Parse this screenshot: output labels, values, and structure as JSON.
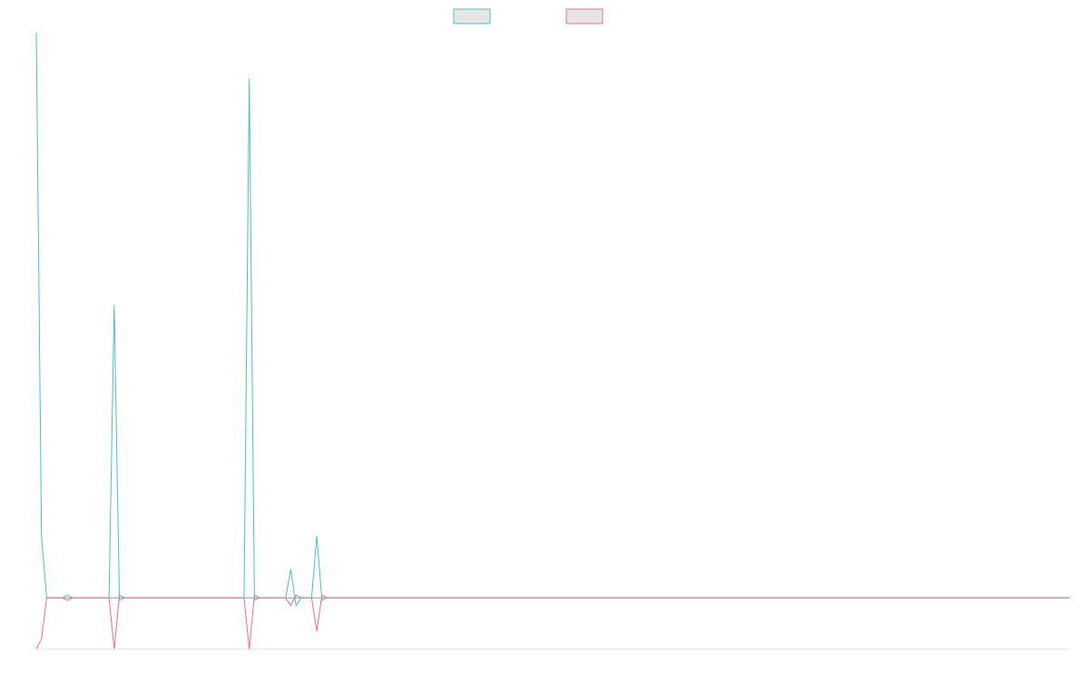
{
  "chart_data": {
    "type": "line",
    "title": "",
    "xlabel": "",
    "ylabel": "",
    "legend_placement": "top-center",
    "grid": false,
    "x_count": 200,
    "ylim": [
      -1,
      11
    ],
    "baseline": 0,
    "series": [
      {
        "color": "#4bc0c0",
        "legend_fill": "#e5e5e5",
        "values": [
          11,
          1.2,
          0,
          0,
          0,
          0,
          0.05,
          0,
          0,
          0,
          0,
          0,
          0,
          0,
          0,
          5.7,
          -0.05,
          0,
          0,
          0,
          0,
          0,
          0,
          0,
          0,
          0,
          0,
          0,
          0,
          0,
          0,
          0,
          0,
          0,
          0,
          0,
          0,
          0,
          0,
          0,
          0,
          10.1,
          -0.05,
          0,
          0,
          0,
          0,
          0,
          0,
          0.55,
          -0.15,
          0,
          0,
          0,
          1.2,
          -0.05
        ],
        "values_rest": 0
      },
      {
        "color": "#f06b8c",
        "legend_fill": "#e5e5e5",
        "values": [
          -1,
          -0.8,
          0,
          0,
          0,
          0,
          -0.05,
          0,
          0,
          0,
          0,
          0,
          0,
          0,
          0,
          -1,
          0.05,
          0,
          0,
          0,
          0,
          0,
          0,
          0,
          0,
          0,
          0,
          0,
          0,
          0,
          0,
          0,
          0,
          0,
          0,
          0,
          0,
          0,
          0,
          0,
          0,
          -1,
          0.05,
          0,
          0,
          0,
          0,
          0,
          0,
          -0.15,
          0.05,
          0,
          0,
          0,
          -0.65,
          0.05
        ],
        "values_rest": 0
      }
    ]
  }
}
